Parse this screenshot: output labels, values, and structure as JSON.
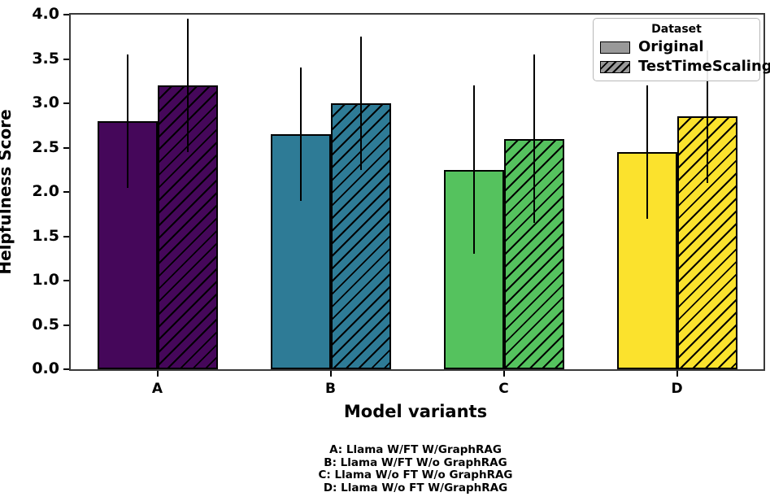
{
  "chart_data": {
    "type": "bar",
    "title": "",
    "xlabel": "Model variants",
    "ylabel": "Helpfulness Score",
    "ylim": [
      0.0,
      4.0
    ],
    "yticks": [
      "0.0",
      "0.5",
      "1.0",
      "1.5",
      "2.0",
      "2.5",
      "3.0",
      "3.5",
      "4.0"
    ],
    "grid": "off",
    "categories": [
      "A",
      "B",
      "C",
      "D"
    ],
    "group_colors": [
      "#45075a",
      "#2e7b96",
      "#55c25e",
      "#fbe22d"
    ],
    "bar_edge_color": "#000000",
    "series": [
      {
        "name": "Original",
        "hatch": false,
        "values": [
          2.8,
          2.65,
          2.25,
          2.45
        ],
        "error_low": [
          2.05,
          1.9,
          1.3,
          1.7
        ],
        "error_high": [
          3.55,
          3.4,
          3.2,
          3.2
        ]
      },
      {
        "name": "TestTimeScaling",
        "hatch": true,
        "values": [
          3.2,
          3.0,
          2.6,
          2.85
        ],
        "error_low": [
          2.45,
          2.25,
          1.65,
          2.1
        ],
        "error_high": [
          3.95,
          3.75,
          3.55,
          3.6
        ]
      }
    ],
    "legend": {
      "title": "Dataset",
      "position": "upper right",
      "swatch_color": "#999999",
      "entries": [
        {
          "label": "Original",
          "hatch": false
        },
        {
          "label": "TestTimeScaling",
          "hatch": true
        }
      ]
    },
    "footnotes": [
      "A: Llama W/FT W/GraphRAG",
      "B: Llama W/FT W/o GraphRAG",
      "C: Llama W/o FT W/o GraphRAG",
      "D: Llama W/o FT W/GraphRAG"
    ]
  }
}
